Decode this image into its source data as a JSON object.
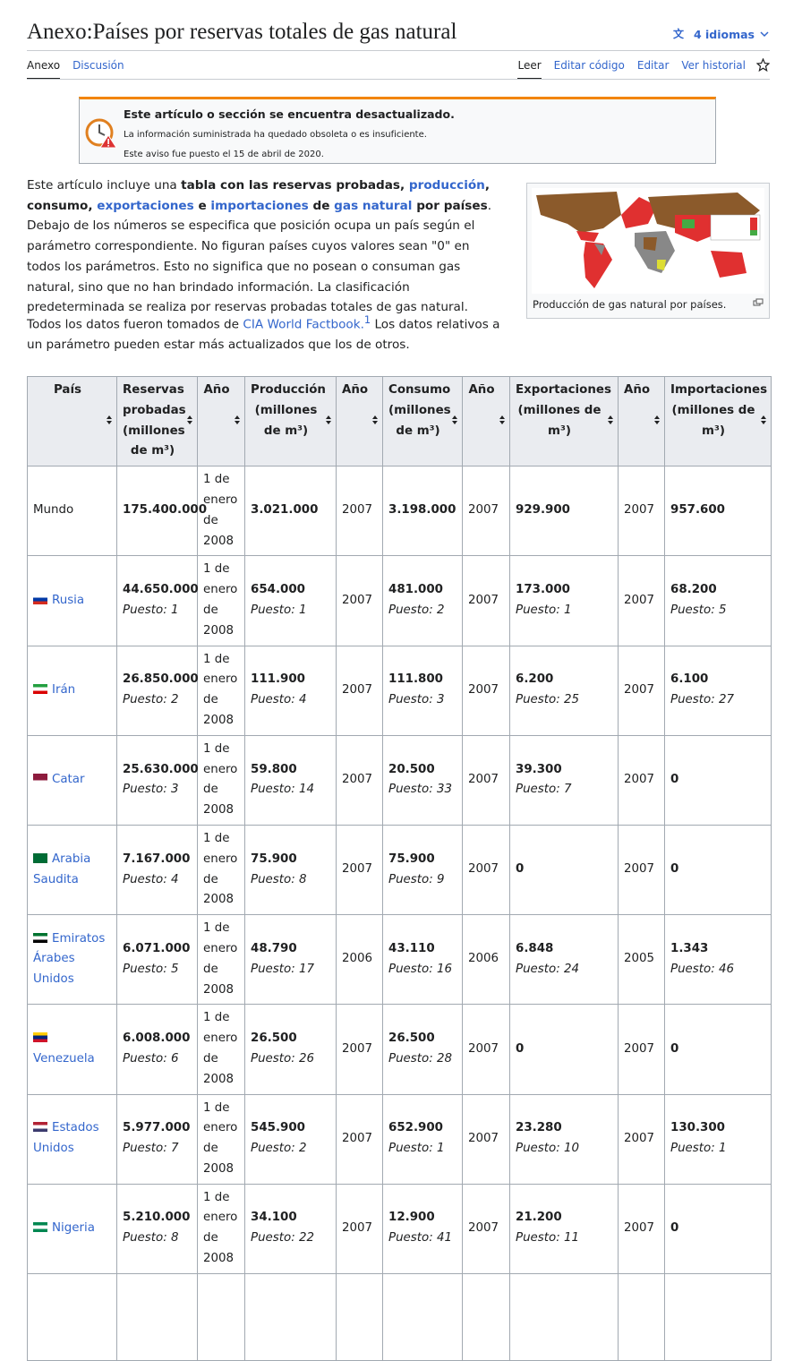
{
  "header": {
    "title": "Anexo:Países por reservas totales de gas natural",
    "languages": "4 idiomas"
  },
  "tabs": {
    "left": [
      "Anexo",
      "Discusión"
    ],
    "right": [
      "Leer",
      "Editar código",
      "Editar",
      "Ver historial"
    ]
  },
  "notice": {
    "title": "Este artículo o sección se encuentra desactualizado.",
    "line1": "La información suministrada ha quedado obsoleta o es insuficiente.",
    "line2": "Este aviso fue puesto el 15 de abril de 2020."
  },
  "intro": [
    {
      "text": "Este artículo incluye una ",
      "style": "plain"
    },
    {
      "text": "tabla con las reservas probadas, ",
      "style": "bold"
    },
    {
      "text": "producción",
      "style": "bold-link"
    },
    {
      "text": ", consumo, ",
      "style": "bold"
    },
    {
      "text": "exportaciones",
      "style": "bold-link"
    },
    {
      "text": " e ",
      "style": "bold"
    },
    {
      "text": "importaciones",
      "style": "bold-link"
    },
    {
      "text": " de ",
      "style": "bold"
    },
    {
      "text": "gas natural",
      "style": "bold-link"
    },
    {
      "text": " por países",
      "style": "bold"
    },
    {
      "text": ". Debajo de los números se especifica que posición ocupa un país según el parámetro correspondiente. No figuran países cuyos valores sean \"0\" en todos los parámetros. Esto no significa que no posean o consuman gas natural, sino que no han brindado información. La clasificación predeterminada se realiza por reservas probadas totales de gas natural.",
      "style": "plain"
    }
  ],
  "sources": [
    {
      "text": "Todos los datos fueron tomados de ",
      "style": "plain"
    },
    {
      "text": "CIA World Factbook.",
      "style": "link"
    },
    {
      "text": "1",
      "style": "sup"
    },
    {
      "text": " Los datos relativos a un parámetro pueden estar más actualizados que los de otros.",
      "style": "plain"
    }
  ],
  "figure": {
    "caption": "Producción de gas natural por países."
  },
  "table": {
    "headers": [
      "País",
      "Reservas probadas (millones de m³)",
      "Año",
      "Producción (millones de m³)",
      "Año",
      "Consumo (millones de m³)",
      "Año",
      "Exportaciones (millones de m³)",
      "Año",
      "Importaciones (millones de m³)"
    ],
    "rows": [
      [
        "Mundo",
        "175.400.000",
        "1 de enero de 2008",
        "3.021.000",
        "2007",
        "3.198.000",
        "2007",
        "929.900",
        "2007",
        "957.600"
      ],
      [
        "Rusia",
        {
          "value": "44.650.000",
          "rank": "Puesto: 1"
        },
        "1 de enero de 2008",
        {
          "value": "654.000",
          "rank": "Puesto: 1"
        },
        "2007",
        {
          "value": "481.000",
          "rank": "Puesto: 2"
        },
        "2007",
        {
          "value": "173.000",
          "rank": "Puesto: 1"
        },
        "2007",
        {
          "value": "68.200",
          "rank": "Puesto: 5"
        }
      ],
      [
        "Irán",
        {
          "value": "26.850.000",
          "rank": "Puesto: 2"
        },
        "1 de enero de 2008",
        {
          "value": "111.900",
          "rank": "Puesto: 4"
        },
        "2007",
        {
          "value": "111.800",
          "rank": "Puesto: 3"
        },
        "2007",
        {
          "value": "6.200",
          "rank": "Puesto: 25"
        },
        "2007",
        {
          "value": "6.100",
          "rank": "Puesto: 27"
        }
      ],
      [
        "Catar",
        {
          "value": "25.630.000",
          "rank": "Puesto: 3"
        },
        "1 de enero de 2008",
        {
          "value": "59.800",
          "rank": "Puesto: 14"
        },
        "2007",
        {
          "value": "20.500",
          "rank": "Puesto: 33"
        },
        "2007",
        {
          "value": "39.300",
          "rank": "Puesto: 7"
        },
        "2007",
        "0"
      ],
      [
        "Arabia Saudita",
        {
          "value": "7.167.000",
          "rank": "Puesto: 4"
        },
        "1 de enero de 2008",
        {
          "value": "75.900",
          "rank": "Puesto: 8"
        },
        "2007",
        {
          "value": "75.900",
          "rank": "Puesto: 9"
        },
        "2007",
        "0",
        "2007",
        "0"
      ],
      [
        "Emiratos Árabes Unidos",
        {
          "value": "6.071.000",
          "rank": "Puesto: 5"
        },
        "1 de enero de 2008",
        {
          "value": "48.790",
          "rank": "Puesto: 17"
        },
        "2006",
        {
          "value": "43.110",
          "rank": "Puesto: 16"
        },
        "2006",
        {
          "value": "6.848",
          "rank": "Puesto: 24"
        },
        "2005",
        {
          "value": "1.343",
          "rank": "Puesto: 46"
        }
      ],
      [
        "Venezuela",
        {
          "value": "6.008.000",
          "rank": "Puesto: 6"
        },
        "1 de enero de 2008",
        {
          "value": "26.500",
          "rank": "Puesto: 26"
        },
        "2007",
        {
          "value": "26.500",
          "rank": "Puesto: 28"
        },
        "2007",
        "0",
        "2007",
        "0"
      ],
      [
        "Estados Unidos",
        {
          "value": "5.977.000",
          "rank": "Puesto: 7"
        },
        "1 de enero de 2008",
        {
          "value": "545.900",
          "rank": "Puesto: 2"
        },
        "2007",
        {
          "value": "652.900",
          "rank": "Puesto: 1"
        },
        "2007",
        {
          "value": "23.280",
          "rank": "Puesto: 10"
        },
        "2007",
        {
          "value": "130.300",
          "rank": "Puesto: 1"
        }
      ],
      [
        "Nigeria",
        {
          "value": "5.210.000",
          "rank": "Puesto: 8"
        },
        "1 de enero de 2008",
        {
          "value": "34.100",
          "rank": "Puesto: 22"
        },
        "2007",
        {
          "value": "12.900",
          "rank": "Puesto: 41"
        },
        "2007",
        {
          "value": "21.200",
          "rank": "Puesto: 11"
        },
        "2007",
        "0"
      ]
    ]
  }
}
